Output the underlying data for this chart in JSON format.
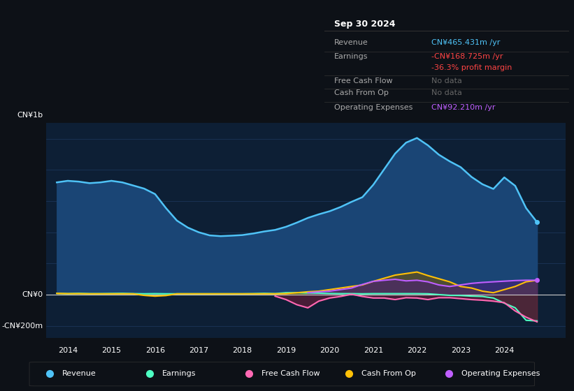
{
  "bg_color": "#0d1117",
  "plot_bg_color": "#0d1f35",
  "grid_color": "#1e3a5f",
  "zero_line_color": "#cccccc",
  "ylim": [
    -280,
    1100
  ],
  "xlim": [
    2013.5,
    2025.4
  ],
  "xlabel_years": [
    2014,
    2015,
    2016,
    2017,
    2018,
    2019,
    2020,
    2021,
    2022,
    2023,
    2024
  ],
  "ylabel_top": "CN¥1b",
  "ylabel_mid": "CN¥0",
  "ylabel_bot": "-CN¥200m",
  "info_box": {
    "date": "Sep 30 2024",
    "rows": [
      {
        "label": "Revenue",
        "value": "CN¥465.431m /yr",
        "value_color": "#4fc3f7"
      },
      {
        "label": "Earnings",
        "value": "-CN¥168.725m /yr",
        "value_color": "#ff4444"
      },
      {
        "label": "",
        "value": "-36.3% profit margin",
        "value_color": "#ff4444"
      },
      {
        "label": "Free Cash Flow",
        "value": "No data",
        "value_color": "#666666"
      },
      {
        "label": "Cash From Op",
        "value": "No data",
        "value_color": "#666666"
      },
      {
        "label": "Operating Expenses",
        "value": "CN¥92.210m /yr",
        "value_color": "#bf5fff"
      }
    ]
  },
  "legend": [
    {
      "label": "Revenue",
      "color": "#4fc3f7"
    },
    {
      "label": "Earnings",
      "color": "#4dffc3"
    },
    {
      "label": "Free Cash Flow",
      "color": "#ff69b4"
    },
    {
      "label": "Cash From Op",
      "color": "#ffc107"
    },
    {
      "label": "Operating Expenses",
      "color": "#bf5fff"
    }
  ],
  "series": {
    "revenue": {
      "color": "#4fc3f7",
      "fill": "#1a4575",
      "x": [
        2013.75,
        2014.0,
        2014.25,
        2014.5,
        2014.75,
        2015.0,
        2015.25,
        2015.5,
        2015.75,
        2016.0,
        2016.25,
        2016.5,
        2016.75,
        2017.0,
        2017.25,
        2017.5,
        2017.75,
        2018.0,
        2018.25,
        2018.5,
        2018.75,
        2019.0,
        2019.25,
        2019.5,
        2019.75,
        2020.0,
        2020.25,
        2020.5,
        2020.75,
        2021.0,
        2021.25,
        2021.5,
        2021.75,
        2022.0,
        2022.25,
        2022.5,
        2022.75,
        2023.0,
        2023.25,
        2023.5,
        2023.75,
        2024.0,
        2024.25,
        2024.5,
        2024.75
      ],
      "y": [
        720,
        730,
        725,
        715,
        720,
        730,
        720,
        700,
        680,
        645,
        555,
        475,
        430,
        400,
        380,
        375,
        378,
        382,
        392,
        405,
        415,
        435,
        462,
        492,
        515,
        535,
        562,
        595,
        625,
        705,
        805,
        905,
        975,
        1005,
        958,
        898,
        855,
        818,
        755,
        708,
        678,
        752,
        698,
        555,
        465
      ]
    },
    "earnings": {
      "color": "#4dffc3",
      "fill": "#1a4a3a",
      "x": [
        2013.75,
        2014.0,
        2014.25,
        2014.5,
        2014.75,
        2015.0,
        2015.25,
        2015.5,
        2015.75,
        2016.0,
        2016.25,
        2016.5,
        2016.75,
        2017.0,
        2017.25,
        2017.5,
        2017.75,
        2018.0,
        2018.25,
        2018.5,
        2018.75,
        2019.0,
        2019.25,
        2019.5,
        2019.75,
        2020.0,
        2020.25,
        2020.5,
        2020.75,
        2021.0,
        2021.25,
        2021.5,
        2021.75,
        2022.0,
        2022.25,
        2022.5,
        2022.75,
        2023.0,
        2023.25,
        2023.5,
        2023.75,
        2024.0,
        2024.25,
        2024.5,
        2024.75
      ],
      "y": [
        8,
        6,
        8,
        6,
        6,
        7,
        8,
        6,
        5,
        6,
        5,
        5,
        5,
        5,
        5,
        5,
        5,
        5,
        6,
        8,
        6,
        12,
        12,
        10,
        9,
        7,
        6,
        6,
        5,
        6,
        6,
        6,
        6,
        6,
        5,
        0,
        -5,
        -6,
        -10,
        -12,
        -22,
        -55,
        -85,
        -165,
        -169
      ]
    },
    "free_cash_flow": {
      "color": "#ff69b4",
      "fill": "#7a1a3a",
      "x": [
        2018.75,
        2019.0,
        2019.25,
        2019.5,
        2019.75,
        2020.0,
        2020.25,
        2020.5,
        2020.75,
        2021.0,
        2021.25,
        2021.5,
        2021.75,
        2022.0,
        2022.25,
        2022.5,
        2022.75,
        2023.0,
        2023.25,
        2023.5,
        2023.75,
        2024.0,
        2024.25,
        2024.5,
        2024.75
      ],
      "y": [
        -10,
        -32,
        -65,
        -85,
        -42,
        -22,
        -12,
        2,
        -12,
        -22,
        -22,
        -32,
        -20,
        -22,
        -32,
        -20,
        -20,
        -26,
        -32,
        -36,
        -42,
        -52,
        -105,
        -145,
        -175
      ]
    },
    "cash_from_op": {
      "color": "#ffc107",
      "fill": "#7a5500",
      "x": [
        2013.75,
        2014.0,
        2014.25,
        2014.5,
        2014.75,
        2015.0,
        2015.25,
        2015.5,
        2015.75,
        2016.0,
        2016.25,
        2016.5,
        2016.75,
        2017.0,
        2017.25,
        2017.5,
        2017.75,
        2018.0,
        2018.25,
        2018.5,
        2018.75,
        2019.0,
        2019.25,
        2019.5,
        2019.75,
        2020.0,
        2020.25,
        2020.5,
        2020.75,
        2021.0,
        2021.25,
        2021.5,
        2021.75,
        2022.0,
        2022.25,
        2022.5,
        2022.75,
        2023.0,
        2023.25,
        2023.5,
        2023.75,
        2024.0,
        2024.25,
        2024.5,
        2024.75
      ],
      "y": [
        8,
        6,
        6,
        5,
        5,
        5,
        5,
        5,
        -5,
        -10,
        -6,
        5,
        5,
        5,
        5,
        5,
        5,
        5,
        5,
        5,
        5,
        6,
        12,
        18,
        22,
        32,
        42,
        52,
        62,
        85,
        105,
        125,
        135,
        145,
        122,
        102,
        82,
        52,
        42,
        22,
        12,
        32,
        52,
        82,
        92
      ]
    },
    "operating_expenses": {
      "color": "#bf5fff",
      "fill": "#4a1a7a",
      "x": [
        2019.5,
        2019.75,
        2020.0,
        2020.25,
        2020.5,
        2020.75,
        2021.0,
        2021.25,
        2021.5,
        2021.75,
        2022.0,
        2022.25,
        2022.5,
        2022.75,
        2023.0,
        2023.25,
        2023.5,
        2023.75,
        2024.0,
        2024.25,
        2024.5,
        2024.75
      ],
      "y": [
        12,
        18,
        22,
        32,
        42,
        65,
        85,
        92,
        98,
        88,
        92,
        82,
        62,
        52,
        62,
        72,
        78,
        82,
        86,
        90,
        92,
        92
      ]
    }
  }
}
